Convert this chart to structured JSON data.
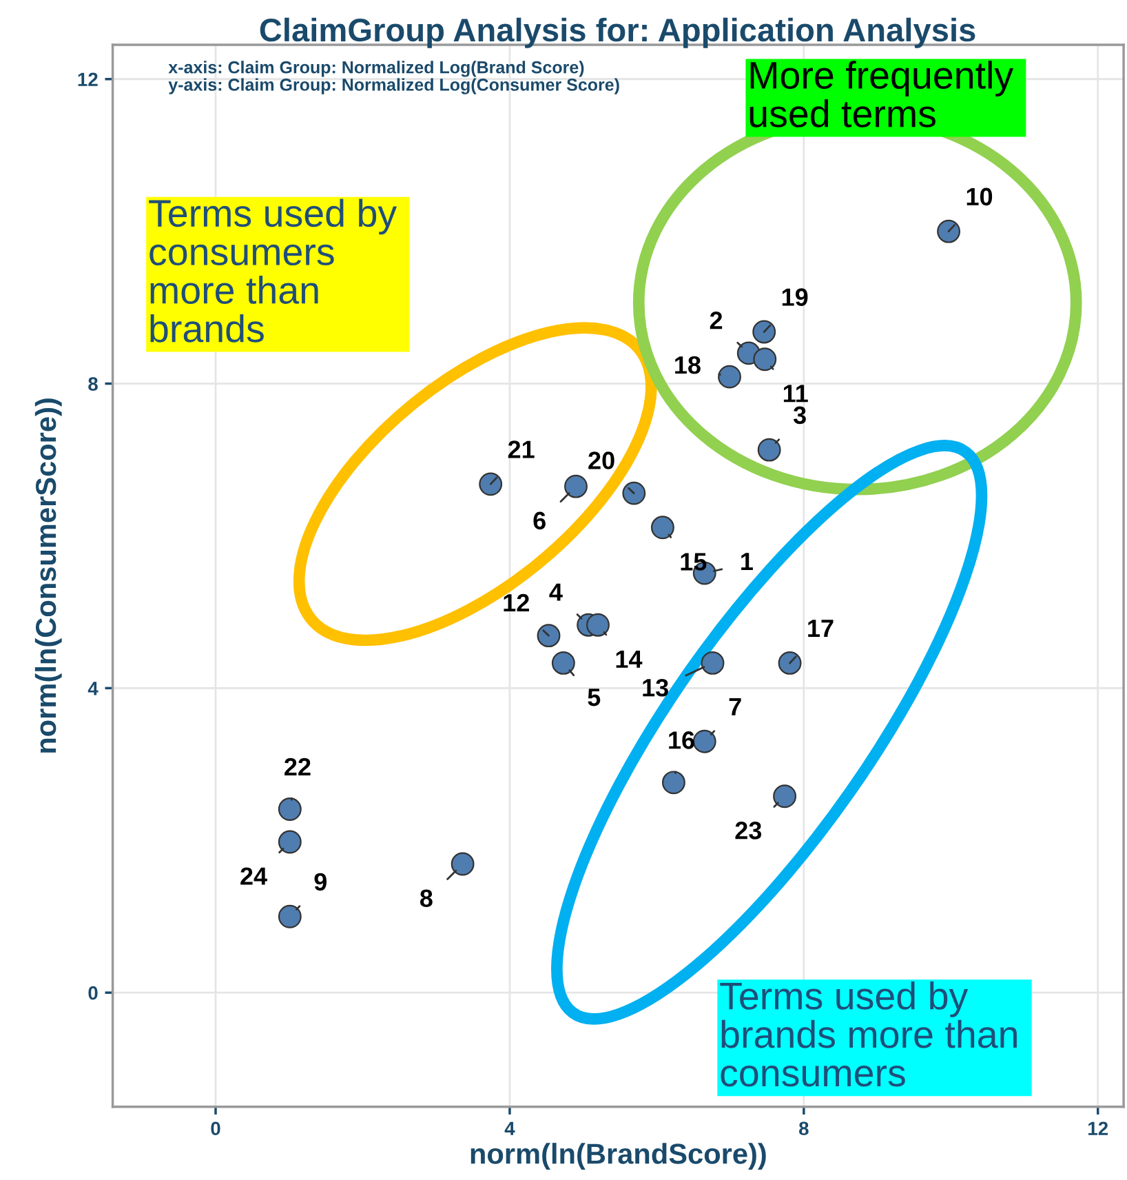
{
  "chart_data": {
    "type": "scatter",
    "title": "ClaimGroup Analysis for: Application Analysis",
    "xlabel": "norm(ln(BrandScore))",
    "ylabel": "norm(ln(ConsumerScore))",
    "x": [
      6.65,
      7.25,
      7.53,
      5.07,
      4.73,
      4.9,
      6.65,
      3.36,
      1.01,
      9.97,
      7.47,
      4.53,
      6.76,
      5.2,
      6.08,
      6.23,
      7.81,
      6.99,
      7.46,
      5.69,
      3.74,
      1.01,
      7.74,
      1.01
    ],
    "series": [
      {
        "color": "#4f7db0",
        "values": [
          5.51,
          8.4,
          7.13,
          4.83,
          4.33,
          6.65,
          3.3,
          1.69,
          1.0,
          10.0,
          8.32,
          4.69,
          4.33,
          4.83,
          6.11,
          2.76,
          4.33,
          8.09,
          8.68,
          6.56,
          6.68,
          2.41,
          2.58,
          1.98
        ]
      }
    ],
    "xlim": [
      -1.4,
      12.35
    ],
    "ylim": [
      -1.5,
      12.45
    ],
    "xticks": [
      0,
      4,
      8,
      12
    ],
    "yticks": [
      0,
      4,
      8,
      12
    ],
    "grid": true,
    "marker": "circle",
    "annotations": [
      {
        "text": "1",
        "x": 6.65,
        "y": 5.51
      },
      {
        "text": "2",
        "x": 7.25,
        "y": 8.4
      },
      {
        "text": "3",
        "x": 7.53,
        "y": 7.13
      },
      {
        "text": "4",
        "x": 5.07,
        "y": 4.83
      },
      {
        "text": "5",
        "x": 4.73,
        "y": 4.33
      },
      {
        "text": "6",
        "x": 4.9,
        "y": 6.65
      },
      {
        "text": "7",
        "x": 6.65,
        "y": 3.3
      },
      {
        "text": "8",
        "x": 3.36,
        "y": 1.69
      },
      {
        "text": "9",
        "x": 1.01,
        "y": 1.0
      },
      {
        "text": "10",
        "x": 9.97,
        "y": 10.0
      },
      {
        "text": "11",
        "x": 7.47,
        "y": 8.32
      },
      {
        "text": "12",
        "x": 4.53,
        "y": 4.69
      },
      {
        "text": "13",
        "x": 6.76,
        "y": 4.33
      },
      {
        "text": "14",
        "x": 5.2,
        "y": 4.83
      },
      {
        "text": "15",
        "x": 6.08,
        "y": 6.11
      },
      {
        "text": "16",
        "x": 6.23,
        "y": 2.76
      },
      {
        "text": "17",
        "x": 7.81,
        "y": 4.33
      },
      {
        "text": "18",
        "x": 6.99,
        "y": 8.09
      },
      {
        "text": "19",
        "x": 7.46,
        "y": 8.68
      },
      {
        "text": "20",
        "x": 5.69,
        "y": 6.56
      },
      {
        "text": "21",
        "x": 3.74,
        "y": 6.68
      },
      {
        "text": "22",
        "x": 1.01,
        "y": 2.41
      },
      {
        "text": "23",
        "x": 7.74,
        "y": 2.58
      },
      {
        "text": "24",
        "x": 1.01,
        "y": 1.98
      },
      "x-axis: Claim Group: Normalized Log(Brand Score)\ny-axis: Claim Group: Normalized Log(Consumer Score)",
      "More frequently \nused terms",
      "Terms used by \nconsumers \nmore than \nbrands",
      "Terms used by \nbrands more than \nconsumers"
    ]
  }
}
